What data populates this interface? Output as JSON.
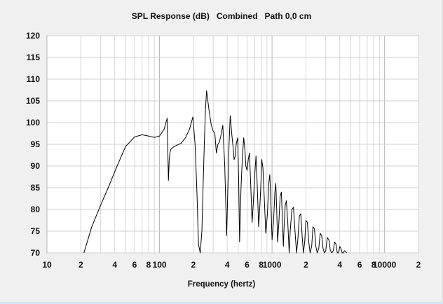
{
  "chart_data": {
    "type": "line",
    "title": "SPL Response (dB)   Combined   Path 0,0 cm",
    "xlabel": "Frequency (hertz)",
    "ylabel": "",
    "x_scale": "log",
    "xlim": [
      10,
      20000
    ],
    "ylim": [
      70,
      120
    ],
    "grid": true,
    "y_ticks": [
      70,
      75,
      80,
      85,
      90,
      95,
      100,
      105,
      110,
      115,
      120
    ],
    "x_ticks": [
      {
        "value": 10,
        "label": "10"
      },
      {
        "value": 20,
        "label": "2"
      },
      {
        "value": 40,
        "label": "4"
      },
      {
        "value": 60,
        "label": "6"
      },
      {
        "value": 80,
        "label": "8"
      },
      {
        "value": 100,
        "label": "100"
      },
      {
        "value": 200,
        "label": "2"
      },
      {
        "value": 400,
        "label": "4"
      },
      {
        "value": 600,
        "label": "6"
      },
      {
        "value": 800,
        "label": "8"
      },
      {
        "value": 1000,
        "label": "1000"
      },
      {
        "value": 2000,
        "label": "2"
      },
      {
        "value": 4000,
        "label": "4"
      },
      {
        "value": 6000,
        "label": "6"
      },
      {
        "value": 8000,
        "label": "8"
      },
      {
        "value": 10000,
        "label": "10000"
      },
      {
        "value": 20000,
        "label": "2"
      }
    ],
    "series": [
      {
        "color": "#000000",
        "x": [
          21.3,
          25,
          30,
          35,
          42,
          50,
          60,
          70,
          80,
          90,
          100,
          110,
          117,
          120,
          122,
          124,
          126,
          128,
          132,
          140,
          155,
          170,
          185,
          198,
          207,
          215,
          222,
          230,
          238,
          245,
          250,
          256,
          262,
          275,
          288,
          300,
          310,
          320,
          330,
          340,
          350,
          365,
          380,
          395,
          405,
          415,
          425,
          440,
          450,
          460,
          470,
          480,
          495,
          505,
          515,
          530,
          545,
          560,
          575,
          585,
          600,
          615,
          630,
          650,
          665,
          680,
          700,
          720,
          740,
          760,
          780,
          800,
          810,
          830,
          855,
          880,
          910,
          935,
          955,
          975,
          1000,
          1030,
          1060,
          1080,
          1100,
          1120,
          1150,
          1180,
          1210,
          1235,
          1260,
          1280,
          1310,
          1340,
          1380,
          1420,
          1450,
          1500,
          1550,
          1600,
          1650,
          1700,
          1750,
          1800,
          1850,
          1900,
          1950,
          2000,
          2060,
          2120,
          2180,
          2250,
          2310,
          2380,
          2450,
          2520,
          2600,
          2680,
          2760,
          2840,
          2920,
          3000,
          3100,
          3200,
          3300,
          3400,
          3500,
          3600,
          3700,
          3800,
          3900,
          4000,
          4100,
          4200,
          4300,
          4400,
          4500,
          4600
        ],
        "y": [
          70,
          76,
          81,
          85,
          90,
          94.5,
          96.7,
          97.2,
          96.9,
          96.6,
          96.9,
          98.5,
          101,
          86.7,
          91.5,
          93.2,
          93.8,
          94.0,
          94.3,
          94.7,
          95.2,
          96.5,
          98.5,
          101.3,
          95.0,
          84,
          72,
          70,
          75,
          87,
          95,
          103,
          107.3,
          103.0,
          99.5,
          98.0,
          97.6,
          93.0,
          95.0,
          95.5,
          96.8,
          99.4,
          90.0,
          74,
          85,
          95,
          101.6,
          97.0,
          94.5,
          91.5,
          92.2,
          95.0,
          96.5,
          87.0,
          72.5,
          85,
          92,
          96.5,
          93.5,
          90.0,
          89.0,
          91.5,
          93.0,
          84.0,
          77.0,
          81.0,
          87.5,
          92.3,
          85.0,
          76.0,
          81.0,
          87.0,
          91.5,
          89.5,
          82.0,
          74.5,
          79.0,
          86.0,
          88.0,
          82.0,
          73.0,
          77.0,
          84.0,
          86.0,
          80.0,
          72.5,
          77.0,
          83.0,
          84.0,
          78.0,
          71.5,
          76.0,
          81.0,
          82.0,
          77.0,
          70,
          75.0,
          80.0,
          80.5,
          75.0,
          70,
          73.5,
          78.5,
          79.0,
          74.0,
          70,
          72.5,
          77.5,
          77.0,
          72.5,
          70,
          71.5,
          76.0,
          75.5,
          71.5,
          70,
          71.0,
          74.5,
          74.0,
          71.0,
          70,
          70.5,
          73.5,
          73.0,
          70.5,
          70,
          70.5,
          72.5,
          72.0,
          70,
          70,
          71.5,
          71.0,
          70,
          70,
          70.5,
          70.3,
          70
        ]
      }
    ]
  }
}
